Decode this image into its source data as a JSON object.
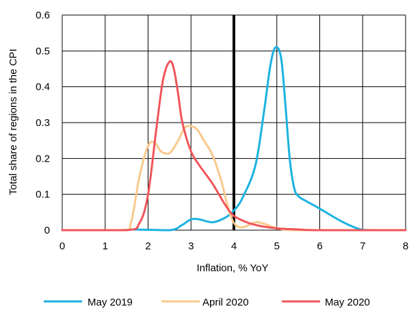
{
  "chart_data": {
    "type": "line",
    "xlabel": "Inflation, % YoY",
    "ylabel": "Total share of regions in the CPI",
    "xlim": [
      0,
      8
    ],
    "ylim": [
      0,
      0.6
    ],
    "x_ticks": [
      "0",
      "1",
      "2",
      "3",
      "4",
      "5",
      "6",
      "7",
      "8"
    ],
    "y_ticks": [
      "0",
      "0.1",
      "0.2",
      "0.3",
      "0.4",
      "0.5",
      "0.6"
    ],
    "grid": true,
    "legend_position": "bottom",
    "reference_line": {
      "x": 4
    },
    "series": [
      {
        "name": "May 2019",
        "color": "#1AB2E0",
        "x": [
          0,
          1.4,
          1.6,
          2.5,
          2.8,
          3.0,
          3.2,
          3.5,
          3.8,
          4.0,
          4.2,
          4.5,
          4.7,
          4.85,
          4.97,
          5.1,
          5.2,
          5.3,
          5.4,
          5.5,
          5.7,
          6.0,
          6.5,
          6.9,
          7.2,
          8
        ],
        "y": [
          0,
          0,
          0.002,
          0,
          0.015,
          0.03,
          0.03,
          0.022,
          0.035,
          0.055,
          0.09,
          0.18,
          0.33,
          0.46,
          0.51,
          0.48,
          0.35,
          0.2,
          0.12,
          0.095,
          0.08,
          0.06,
          0.025,
          0.004,
          0,
          0
        ]
      },
      {
        "name": "April 2020",
        "color": "#F9C98B",
        "x": [
          0,
          1.4,
          1.6,
          1.8,
          2.0,
          2.15,
          2.3,
          2.5,
          2.7,
          2.85,
          3.0,
          3.15,
          3.3,
          3.5,
          3.7,
          3.85,
          4.0,
          4.2,
          4.5,
          4.7,
          5.0,
          5.5,
          8
        ],
        "y": [
          0,
          0,
          0.02,
          0.15,
          0.235,
          0.245,
          0.22,
          0.215,
          0.25,
          0.285,
          0.29,
          0.28,
          0.25,
          0.21,
          0.14,
          0.07,
          0.02,
          0.008,
          0.022,
          0.018,
          0.006,
          0,
          0
        ]
      },
      {
        "name": "May 2020",
        "color": "#F0545A",
        "x": [
          0,
          1.5,
          1.8,
          2.0,
          2.2,
          2.35,
          2.5,
          2.6,
          2.7,
          2.8,
          3.0,
          3.2,
          3.5,
          3.8,
          4.0,
          4.3,
          4.6,
          5.0,
          5.5,
          6.0,
          8
        ],
        "y": [
          0,
          0,
          0.02,
          0.1,
          0.29,
          0.42,
          0.47,
          0.45,
          0.38,
          0.3,
          0.22,
          0.18,
          0.13,
          0.07,
          0.04,
          0.022,
          0.012,
          0.005,
          0.002,
          0,
          0
        ]
      }
    ]
  }
}
